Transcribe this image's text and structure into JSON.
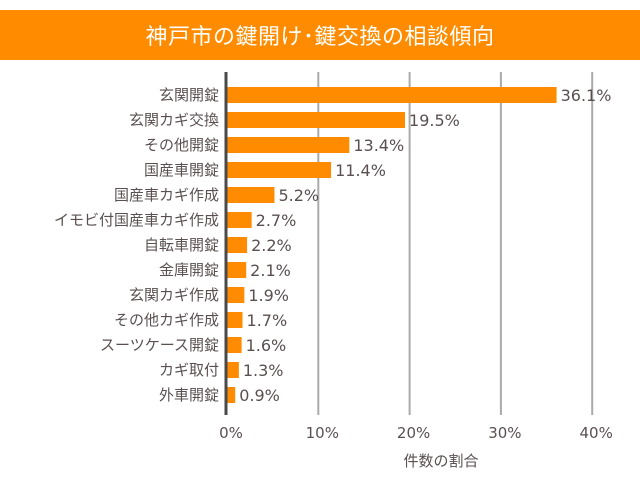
{
  "colors": {
    "title_bg": "#ff8c00",
    "title_text": "#ffffff",
    "bar": "#ff8c00",
    "text": "#5a5050",
    "axis": "#4a4a4a",
    "grid": "#aaaaaa"
  },
  "chart_data": {
    "type": "bar",
    "orientation": "horizontal",
    "title": "神戸市の鍵開け･鍵交換の相談傾向",
    "xlabel": "件数の割合",
    "ylabel": "",
    "xlim": [
      0,
      40
    ],
    "xticks": [
      0,
      10,
      20,
      30,
      40
    ],
    "xtick_labels": [
      "0%",
      "10%",
      "20%",
      "30%",
      "40%"
    ],
    "grid": true,
    "categories": [
      "玄関開錠",
      "玄関カギ交換",
      "その他開錠",
      "国産車開錠",
      "国産車カギ作成",
      "イモビ付国産車カギ作成",
      "自転車開錠",
      "金庫開錠",
      "玄関カギ作成",
      "その他カギ作成",
      "スーツケース開錠",
      "カギ取付",
      "外車開錠"
    ],
    "values": [
      36.1,
      19.5,
      13.4,
      11.4,
      5.2,
      2.7,
      2.2,
      2.1,
      1.9,
      1.7,
      1.6,
      1.3,
      0.9
    ],
    "value_labels": [
      "36.1%",
      "19.5%",
      "13.4%",
      "11.4%",
      "5.2%",
      "2.7%",
      "2.2%",
      "2.1%",
      "1.9%",
      "1.7%",
      "1.6%",
      "1.3%",
      "0.9%"
    ]
  }
}
